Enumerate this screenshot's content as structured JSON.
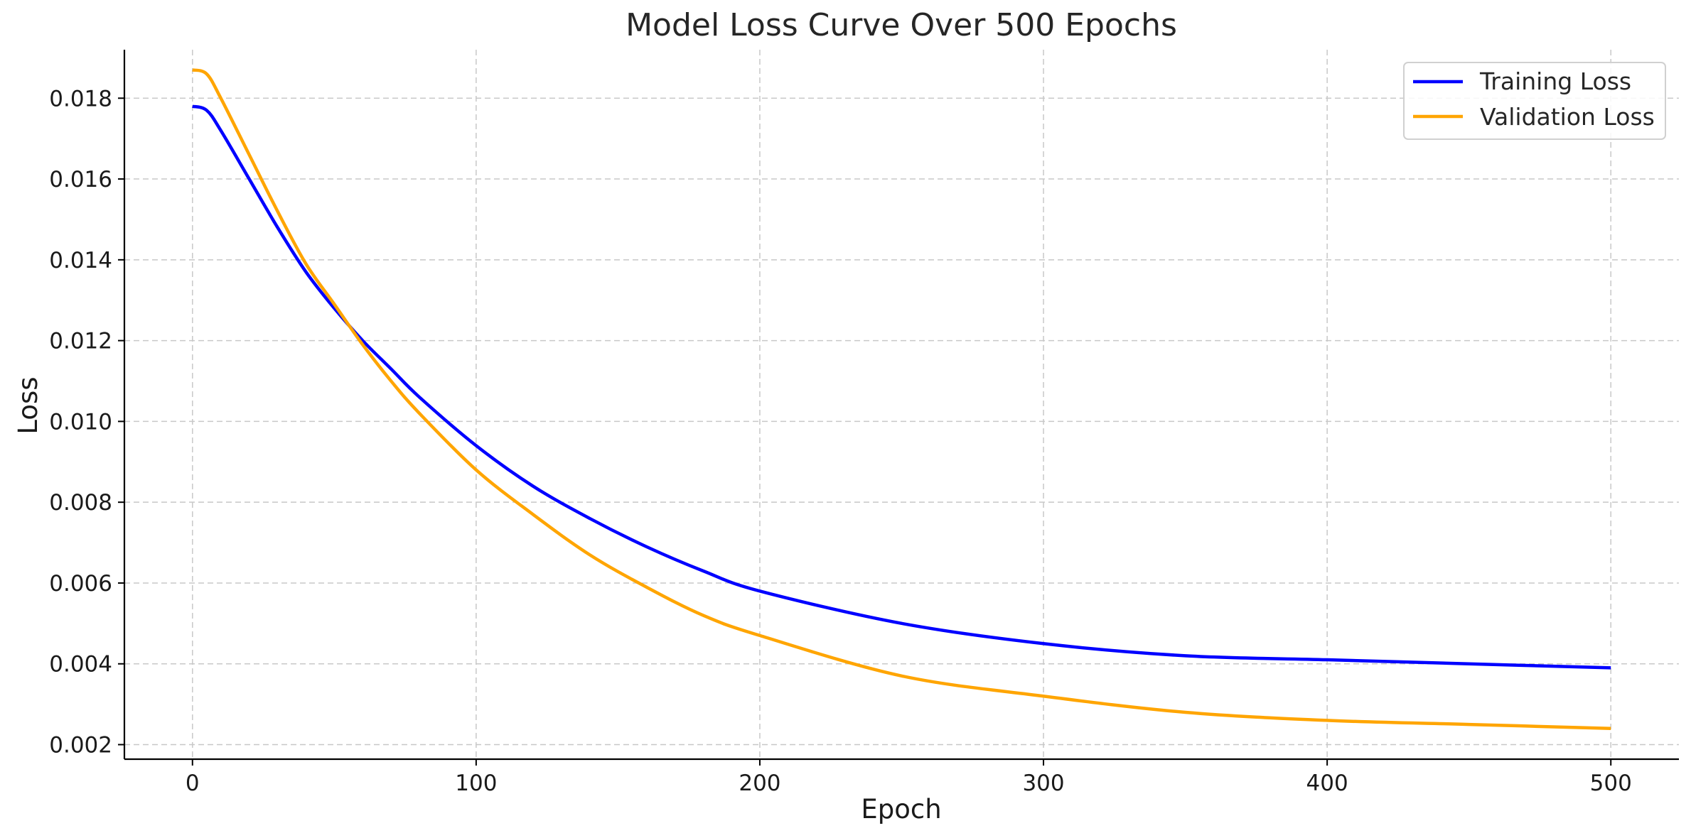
{
  "chart_data": {
    "type": "line",
    "title": "Model Loss Curve Over 500 Epochs",
    "xlabel": "Epoch",
    "ylabel": "Loss",
    "xlim": [
      -24,
      524
    ],
    "ylim": [
      0.00164,
      0.0192
    ],
    "x_ticks": [
      0,
      100,
      200,
      300,
      400,
      500
    ],
    "x_tick_labels": [
      "0",
      "100",
      "200",
      "300",
      "400",
      "500"
    ],
    "y_ticks": [
      0.002,
      0.004,
      0.006,
      0.008,
      0.01,
      0.012,
      0.014,
      0.016,
      0.018
    ],
    "y_tick_labels": [
      "0.002",
      "0.004",
      "0.006",
      "0.008",
      "0.010",
      "0.012",
      "0.014",
      "0.016",
      "0.018"
    ],
    "grid": true,
    "legend_position": "top-right",
    "x": [
      0,
      5,
      10,
      20,
      30,
      40,
      50,
      60,
      70,
      80,
      100,
      120,
      140,
      160,
      180,
      200,
      250,
      300,
      350,
      400,
      450,
      500
    ],
    "series": [
      {
        "name": "Training Loss",
        "color": "#0000ff",
        "values": [
          0.0178,
          0.0177,
          0.0172,
          0.016,
          0.0148,
          0.0137,
          0.0128,
          0.012,
          0.0113,
          0.0106,
          0.0094,
          0.0084,
          0.0076,
          0.0069,
          0.0063,
          0.0058,
          0.005,
          0.0045,
          0.0042,
          0.0041,
          0.004,
          0.0039
        ]
      },
      {
        "name": "Validation Loss",
        "color": "#ffa500",
        "values": [
          0.0187,
          0.0186,
          0.018,
          0.0166,
          0.0152,
          0.0139,
          0.0129,
          0.0119,
          0.011,
          0.0102,
          0.0088,
          0.0077,
          0.0067,
          0.0059,
          0.0052,
          0.0047,
          0.0037,
          0.0032,
          0.0028,
          0.0026,
          0.0025,
          0.0024
        ]
      }
    ]
  }
}
